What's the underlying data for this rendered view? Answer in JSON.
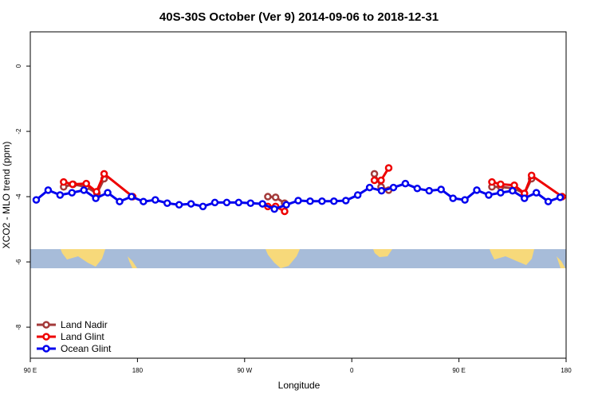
{
  "chart_data": {
    "type": "line",
    "title": "40S-30S October (Ver 9)   2014-09-06 to 2018-12-31",
    "x_label": "Longitude",
    "y_label": "XCO2 - MLO trend (ppm)",
    "xlim": [
      90,
      540
    ],
    "xticks": [
      {
        "value": 90,
        "label": "90 E"
      },
      {
        "value": 180,
        "label": "180"
      },
      {
        "value": 270,
        "label": "90 W"
      },
      {
        "value": 360,
        "label": "0"
      },
      {
        "value": 450,
        "label": "90 E"
      },
      {
        "value": 540,
        "label": "180"
      }
    ],
    "ylim": [
      -8.95,
      1.05
    ],
    "yticks": [
      -8,
      -6,
      -4,
      -2,
      0
    ],
    "legend": "bottom-left",
    "series": [
      {
        "name": "Land Nadir",
        "color": "#a33a3a",
        "x": [
          118,
          126,
          137,
          146,
          152,
          null,
          289.5,
          296,
          303.6,
          null,
          379,
          384.6,
          391,
          null,
          477.7,
          485,
          496.5,
          505,
          511
        ],
        "values": [
          -3.7,
          -3.62,
          -3.7,
          -3.9,
          -3.45,
          null,
          -4.0,
          -4.02,
          -4.2,
          null,
          -3.3,
          -3.7,
          -3.8,
          null,
          -3.7,
          -3.7,
          -3.75,
          -3.9,
          -3.45
        ]
      },
      {
        "name": "Land Glint",
        "color": "#ee0000",
        "x": [
          118,
          125.5,
          137,
          145.6,
          152,
          176,
          null,
          289.5,
          296,
          303.6,
          null,
          379,
          384.6,
          391,
          null,
          477.7,
          485,
          496.5,
          505,
          511,
          536.7
        ],
        "values": [
          -3.55,
          -3.62,
          -3.6,
          -3.85,
          -3.3,
          -4.0,
          null,
          -4.3,
          -4.3,
          -4.45,
          null,
          -3.5,
          -3.5,
          -3.12,
          null,
          -3.55,
          -3.62,
          -3.65,
          -3.9,
          -3.35,
          -4.0
        ]
      },
      {
        "name": "Ocean Glint",
        "color": "#0000ee",
        "x": [
          95,
          105,
          115,
          125,
          135,
          145,
          155,
          165,
          175,
          185,
          195,
          205,
          215,
          225,
          235,
          245,
          255,
          265,
          275,
          285,
          295,
          305,
          315,
          325,
          335,
          345,
          355,
          365,
          375,
          385,
          395,
          405,
          415,
          425,
          435,
          445,
          455,
          465,
          475,
          485,
          495,
          505,
          515,
          525,
          535
        ],
        "values": [
          -4.1,
          -3.8,
          -3.95,
          -3.88,
          -3.8,
          -4.05,
          -3.88,
          -4.15,
          -4.0,
          -4.15,
          -4.1,
          -4.2,
          -4.25,
          -4.22,
          -4.3,
          -4.18,
          -4.18,
          -4.18,
          -4.2,
          -4.22,
          -4.38,
          -4.25,
          -4.12,
          -4.14,
          -4.14,
          -4.14,
          -4.12,
          -3.95,
          -3.72,
          -3.82,
          -3.72,
          -3.6,
          -3.75,
          -3.82,
          -3.78,
          -4.05,
          -4.1,
          -3.8,
          -3.95,
          -3.88,
          -3.82,
          -4.05,
          -3.88,
          -4.15,
          -4.02
        ]
      }
    ]
  }
}
